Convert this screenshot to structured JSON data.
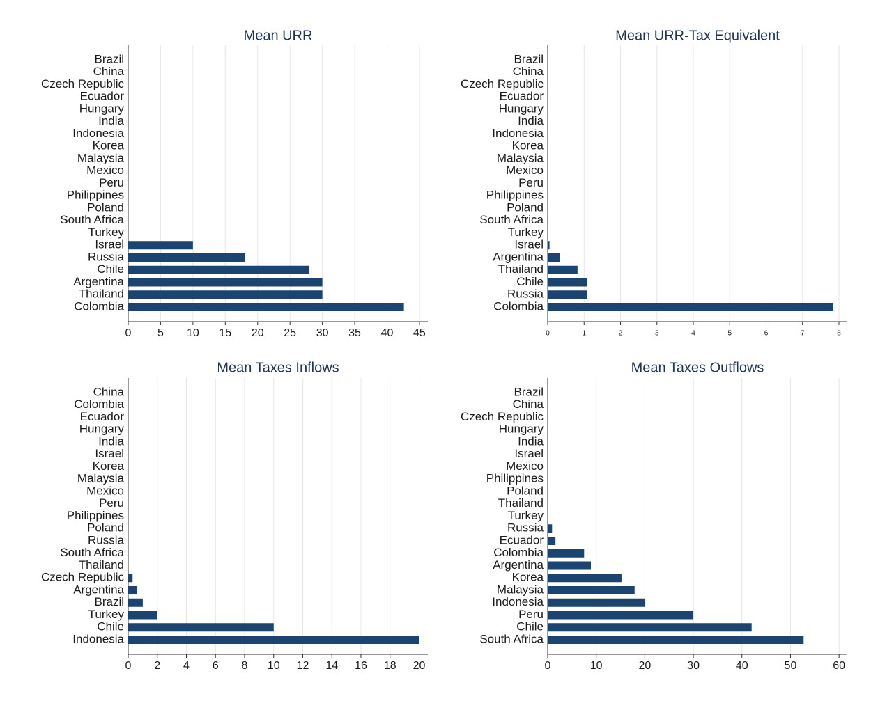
{
  "chart_data": [
    {
      "type": "bar",
      "orientation": "horizontal",
      "title": "Mean URR",
      "categories": [
        "Brazil",
        "China",
        "Czech Republic",
        "Ecuador",
        "Hungary",
        "India",
        "Indonesia",
        "Korea",
        "Malaysia",
        "Mexico",
        "Peru",
        "Philippines",
        "Poland",
        "South Africa",
        "Turkey",
        "Israel",
        "Russia",
        "Chile",
        "Argentina",
        "Thailand",
        "Colombia"
      ],
      "values": [
        0,
        0,
        0,
        0,
        0,
        0,
        0,
        0,
        0,
        0,
        0,
        0,
        0,
        0,
        0,
        10,
        18,
        28,
        30,
        30,
        42.6
      ],
      "color": "#1b4470",
      "xlim": [
        0,
        46.3
      ],
      "xticks": [
        0,
        5,
        10,
        15,
        20,
        25,
        30,
        35,
        40,
        45
      ],
      "grid": true
    },
    {
      "type": "bar",
      "orientation": "horizontal",
      "title": "Mean URR-Tax Equivalent",
      "categories": [
        "Brazil",
        "China",
        "Czech Republic",
        "Ecuador",
        "Hungary",
        "India",
        "Indonesia",
        "Korea",
        "Malaysia",
        "Mexico",
        "Peru",
        "Philippines",
        "Poland",
        "South Africa",
        "Turkey",
        "Israel",
        "Argentina",
        "Thailand",
        "Chile",
        "Russia",
        "Colombia"
      ],
      "values": [
        0,
        0,
        0,
        0,
        0,
        0,
        0,
        0,
        0,
        0,
        0,
        0,
        0,
        0,
        0,
        0.05,
        0.34,
        0.82,
        1.09,
        1.09,
        7.83
      ],
      "color": "#1b4470",
      "xlim": [
        0,
        8.23
      ],
      "xticks": [
        0,
        1,
        2,
        3,
        4,
        5,
        6,
        7,
        8
      ],
      "grid": true
    },
    {
      "type": "bar",
      "orientation": "horizontal",
      "title": "Mean Taxes Inflows",
      "categories": [
        "China",
        "Colombia",
        "Ecuador",
        "Hungary",
        "India",
        "Israel",
        "Korea",
        "Malaysia",
        "Mexico",
        "Peru",
        "Philippines",
        "Poland",
        "Russia",
        "South Africa",
        "Thailand",
        "Czech Republic",
        "Argentina",
        "Brazil",
        "Turkey",
        "Chile",
        "Indonesia"
      ],
      "values": [
        0,
        0,
        0,
        0,
        0,
        0,
        0,
        0,
        0,
        0,
        0,
        0,
        0,
        0,
        0,
        0.3,
        0.6,
        1,
        2,
        10,
        20
      ],
      "color": "#1b4470",
      "xlim": [
        0,
        20.6
      ],
      "xticks": [
        0,
        2,
        4,
        6,
        8,
        10,
        12,
        14,
        16,
        18,
        20
      ],
      "grid": true
    },
    {
      "type": "bar",
      "orientation": "horizontal",
      "title": "Mean Taxes Outflows",
      "categories": [
        "Brazil",
        "China",
        "Czech Republic",
        "Hungary",
        "India",
        "Israel",
        "Mexico",
        "Philippines",
        "Poland",
        "Thailand",
        "Turkey",
        "Russia",
        "Ecuador",
        "Colombia",
        "Argentina",
        "Korea",
        "Malaysia",
        "Indonesia",
        "Peru",
        "Chile",
        "South Africa"
      ],
      "values": [
        0,
        0,
        0,
        0,
        0,
        0,
        0,
        0,
        0,
        0,
        0,
        0.9,
        1.6,
        7.5,
        8.9,
        15.2,
        17.9,
        20.1,
        30,
        42,
        52.7
      ],
      "color": "#1b4470",
      "xlim": [
        0,
        61.7
      ],
      "xticks": [
        0,
        10,
        20,
        30,
        40,
        50,
        60
      ],
      "grid": true
    }
  ]
}
